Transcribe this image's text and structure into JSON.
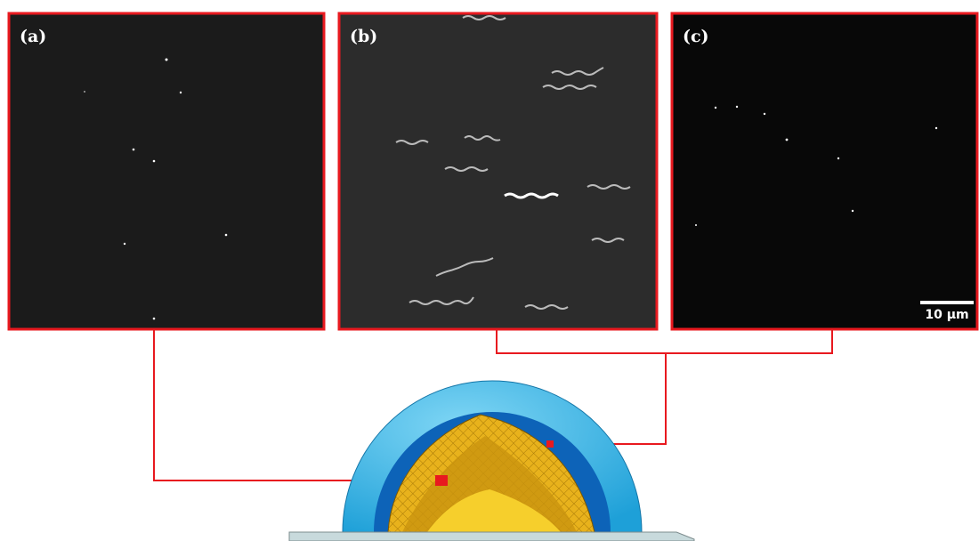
{
  "panels": [
    {
      "label": "(a)"
    },
    {
      "label": "(b)"
    },
    {
      "label": "(c)"
    }
  ],
  "scale_bar": "10 µm"
}
